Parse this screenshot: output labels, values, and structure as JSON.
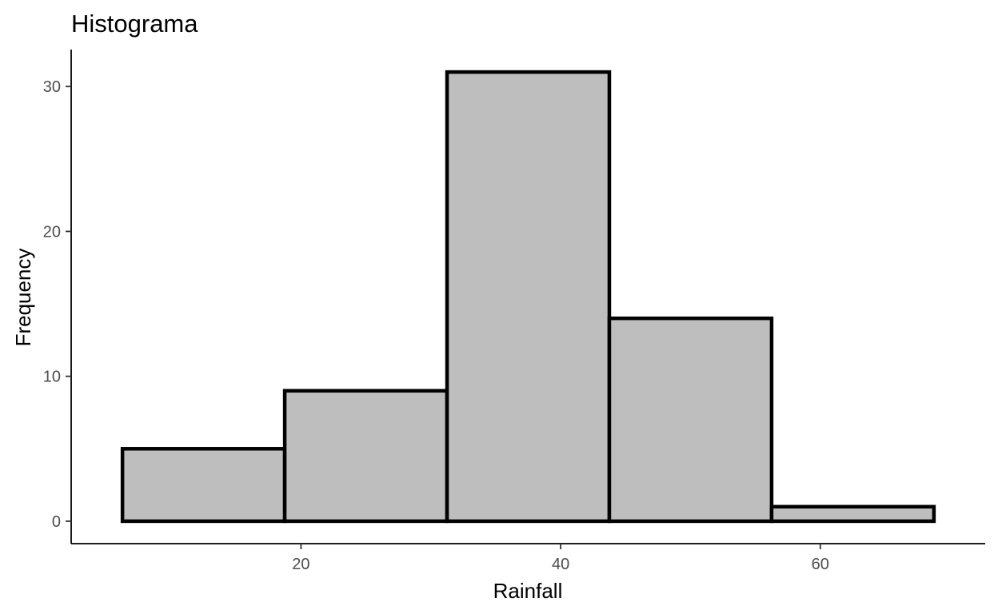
{
  "chart_data": {
    "type": "bar",
    "title": "Histograma",
    "xlabel": "Rainfall",
    "ylabel": "Frequency",
    "bins": [
      {
        "x0": 6.25,
        "x1": 18.75,
        "count": 5
      },
      {
        "x0": 18.75,
        "x1": 31.25,
        "count": 9
      },
      {
        "x0": 31.25,
        "x1": 43.75,
        "count": 31
      },
      {
        "x0": 43.75,
        "x1": 56.25,
        "count": 14
      },
      {
        "x0": 56.25,
        "x1": 68.75,
        "count": 1
      }
    ],
    "xlim": [
      2.3,
      72.7
    ],
    "ylim": [
      -1.55,
      32.55
    ],
    "x_ticks": [
      20,
      40,
      60
    ],
    "y_ticks": [
      0,
      10,
      20,
      30
    ],
    "bar_fill": "#bebebe",
    "bar_outline": "#000000",
    "grid": false,
    "legend": "none"
  }
}
